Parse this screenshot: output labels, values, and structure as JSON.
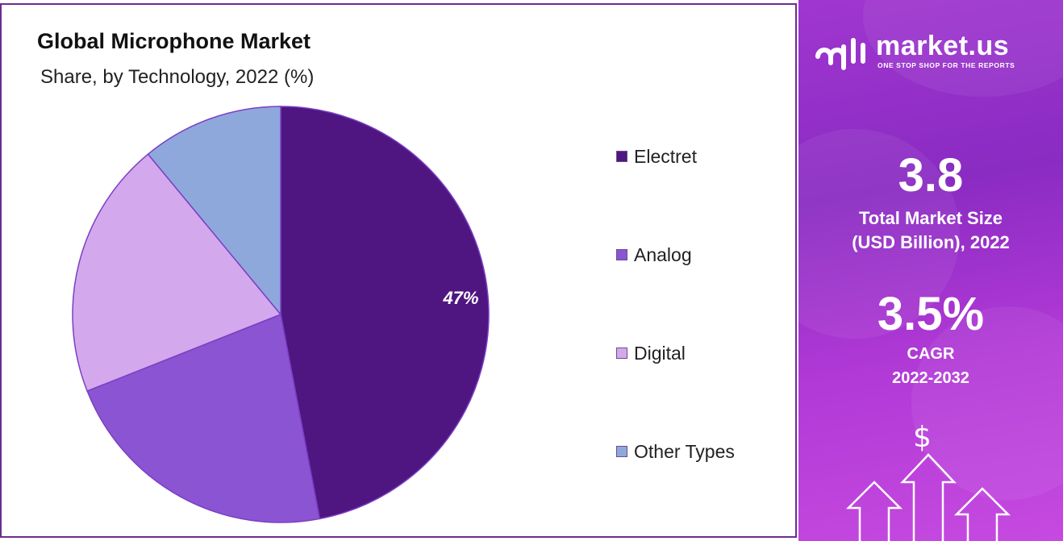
{
  "chart_data": {
    "type": "pie",
    "title": "Global Microphone Market",
    "subtitle": "Share, by Technology, 2022 (%)",
    "categories": [
      "Electret",
      "Analog",
      "Digital",
      "Other Types"
    ],
    "values": [
      47,
      22,
      20,
      11
    ],
    "data_labels": [
      "47%",
      "",
      "",
      ""
    ],
    "legend_position": "right",
    "colors": [
      "#4f1682",
      "#8b54d2",
      "#d4a8ec",
      "#8fa8dc"
    ]
  },
  "side_panel": {
    "brand": "market.us",
    "tagline": "ONE STOP SHOP FOR THE REPORTS",
    "market_size": "3.8",
    "market_size_label_line1": "Total Market Size",
    "market_size_label_line2": "(USD Billion), 2022",
    "cagr": "3.5%",
    "cagr_label_line1": "CAGR",
    "cagr_label_line2": "2022-2032",
    "dollar_symbol": "$",
    "icons": [
      "logo-icon",
      "dollar-icon",
      "up-arrow-icon"
    ]
  }
}
